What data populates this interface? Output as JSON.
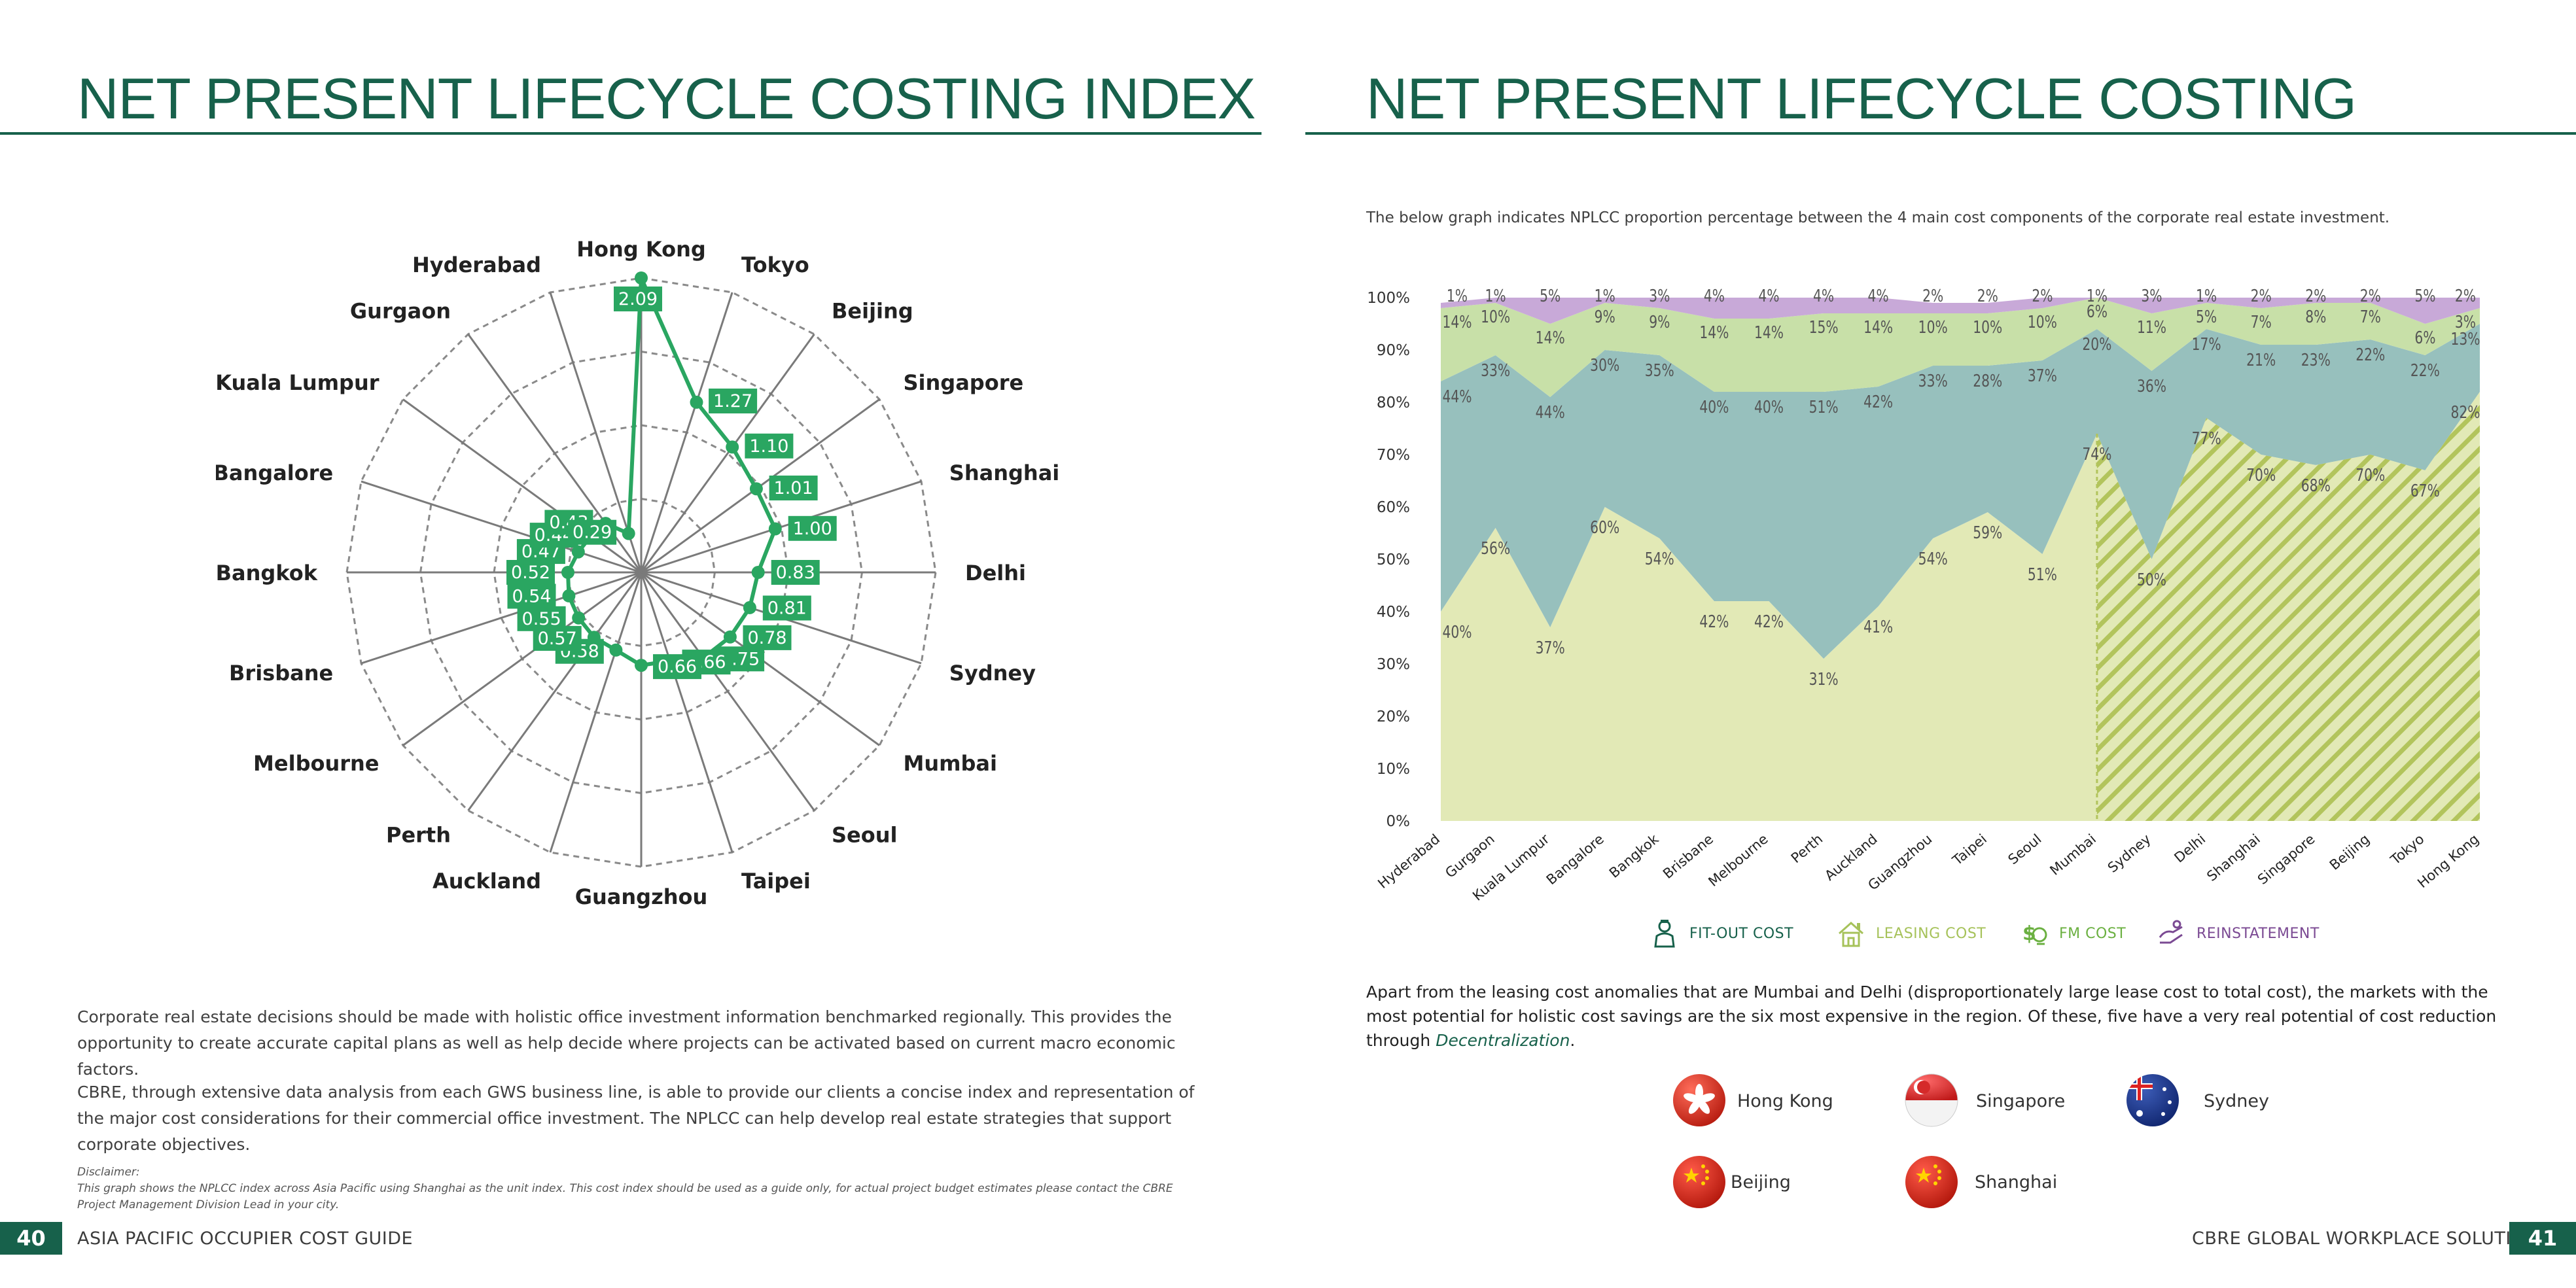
{
  "left": {
    "title": "NET PRESENT LIFECYCLE COSTING INDEX",
    "paragraphs": [
      "Corporate real estate decisions should be made with holistic office investment information benchmarked regionally. This provides the opportunity to create accurate capital plans as well as help decide where projects can be activated based on current macro economic factors.",
      "CBRE, through extensive data analysis from each GWS business line, is able to provide our clients a concise index and representation of the major cost considerations for their commercial office investment. The NPLCC can help develop real estate strategies that support corporate objectives."
    ],
    "disclaimer_heading": "Disclaimer:",
    "disclaimer_text": "This graph shows the NPLCC index across Asia Pacific using Shanghai as the unit index. This cost index should be used as a guide only, for actual project budget estimates please contact the CBRE Project Management Division Lead in your city."
  },
  "right": {
    "title": "NET PRESENT LIFECYCLE COSTING",
    "intro": "The below graph indicates NPLCC proportion percentage between the 4 main cost components of the corporate real estate investment.",
    "analysis": "Apart from the leasing cost anomalies that are Mumbai and Delhi (disproportionately large lease cost to total cost), the markets with the most potential for holistic cost savings are the six most expensive in the region. Of these, five have a very real potential of cost reduction through ",
    "analysis_emphasis": "Decentralization",
    "analysis_end": ".",
    "flags": [
      {
        "city": "Hong Kong",
        "icon": "hong-kong-flag-icon"
      },
      {
        "city": "Singapore",
        "icon": "singapore-flag-icon"
      },
      {
        "city": "Sydney",
        "icon": "australia-flag-icon"
      },
      {
        "city": "Beijing",
        "icon": "china-flag-icon"
      },
      {
        "city": "Shanghai",
        "icon": "china-flag-icon"
      }
    ]
  },
  "footer": {
    "page_left": "40",
    "left_text": "ASIA PACIFIC OCCUPIER COST GUIDE",
    "right_text": "CBRE GLOBAL WORKPLACE SOLUTIONS",
    "page_right": "41"
  },
  "chart_data": [
    {
      "type": "radar",
      "categories": [
        "Hong Kong",
        "Tokyo",
        "Beijing",
        "Singapore",
        "Shanghai",
        "Delhi",
        "Sydney",
        "Mumbai",
        "Seoul",
        "Taipei",
        "Guangzhou",
        "Auckland",
        "Perth",
        "Melbourne",
        "Brisbane",
        "Bangkok",
        "Bangalore",
        "Kuala Lumpur",
        "Gurgaon",
        "Hyderabad"
      ],
      "values": [
        2.09,
        1.27,
        1.1,
        1.01,
        1.0,
        0.83,
        0.81,
        0.78,
        0.75,
        0.66,
        0.66,
        0.58,
        0.57,
        0.55,
        0.54,
        0.52,
        0.47,
        0.44,
        0.43,
        0.29
      ],
      "rmax": 2.09,
      "rings": 4,
      "color": "#2aa661"
    },
    {
      "type": "area",
      "stacked": true,
      "categories": [
        "Hyderabad",
        "Gurgaon",
        "Kuala Lumpur",
        "Bangalore",
        "Bangkok",
        "Brisbane",
        "Melbourne",
        "Perth",
        "Auckland",
        "Guangzhou",
        "Taipei",
        "Seoul",
        "Mumbai",
        "Sydney",
        "Delhi",
        "Shanghai",
        "Singapore",
        "Beijing",
        "Tokyo",
        "Hong Kong"
      ],
      "series": [
        {
          "name": "LEASING COST",
          "color": "#e2e9b6",
          "values": [
            40,
            56,
            37,
            60,
            54,
            42,
            42,
            31,
            41,
            54,
            59,
            51,
            74,
            50,
            77,
            70,
            68,
            70,
            67,
            82
          ]
        },
        {
          "name": "FIT-OUT COST",
          "color": "#97c0bd",
          "values": [
            44,
            33,
            44,
            30,
            35,
            40,
            40,
            51,
            42,
            33,
            28,
            37,
            20,
            36,
            17,
            21,
            23,
            22,
            22,
            13
          ]
        },
        {
          "name": "FM COST",
          "color": "#c8e0a8",
          "values": [
            14,
            10,
            14,
            9,
            9,
            14,
            14,
            15,
            14,
            10,
            10,
            10,
            6,
            11,
            5,
            7,
            8,
            7,
            6,
            3
          ]
        },
        {
          "name": "REINSTATEMENT",
          "color": "#c8a9d8",
          "values": [
            1,
            1,
            5,
            1,
            3,
            4,
            4,
            4,
            4,
            2,
            2,
            2,
            1,
            3,
            1,
            2,
            2,
            2,
            5,
            2
          ]
        }
      ],
      "ylim": [
        0,
        100
      ],
      "y_ticks": [
        "0%",
        "10%",
        "20%",
        "30%",
        "40%",
        "50%",
        "60%",
        "70%",
        "80%",
        "90%",
        "100%"
      ],
      "hatched_from": "Mumbai",
      "legend": [
        {
          "label": "FIT-OUT COST",
          "color": "#17614b",
          "icon": "fit-out-worker-icon"
        },
        {
          "label": "LEASING COST",
          "color": "#a6c25a",
          "icon": "house-icon"
        },
        {
          "label": "FM COST",
          "color": "#6bb041",
          "icon": "fm-money-icon"
        },
        {
          "label": "REINSTATEMENT",
          "color": "#7b4a93",
          "icon": "reinstatement-hand-icon"
        }
      ]
    }
  ]
}
